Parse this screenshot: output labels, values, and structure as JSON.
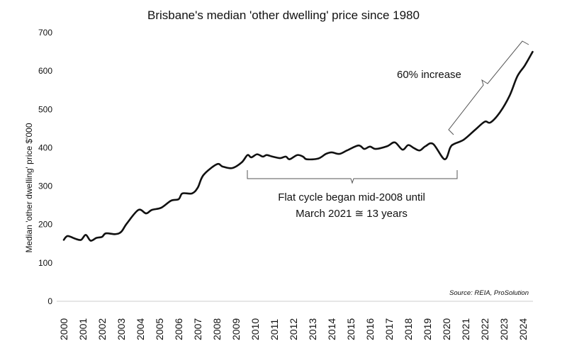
{
  "chart_data": {
    "type": "line",
    "title": "Brisbane's median 'other dwelling' price since 1980",
    "xlabel": "",
    "ylabel": "Median 'other dwelling' price $'000",
    "ylim": [
      0,
      700
    ],
    "yticks": [
      0,
      100,
      200,
      300,
      400,
      500,
      600,
      700
    ],
    "xlim": [
      2000,
      2024.6
    ],
    "xticks": [
      "2000",
      "2001",
      "2002",
      "2003",
      "2004",
      "2005",
      "2006",
      "2007",
      "2008",
      "2009",
      "2010",
      "2011",
      "2012",
      "2013",
      "2014",
      "2015",
      "2016",
      "2017",
      "2018",
      "2019",
      "2020",
      "2021",
      "2022",
      "2023",
      "2024"
    ],
    "grid": false,
    "line_color": "#111111",
    "x": [
      2000.0,
      2000.2,
      2000.6,
      2000.9,
      2001.15,
      2001.4,
      2001.7,
      2002.0,
      2002.2,
      2002.7,
      2003.0,
      2003.3,
      2003.9,
      2004.3,
      2004.6,
      2005.1,
      2005.6,
      2006.0,
      2006.2,
      2006.7,
      2007.0,
      2007.3,
      2008.0,
      2008.3,
      2008.8,
      2009.3,
      2009.6,
      2009.8,
      2010.1,
      2010.4,
      2010.6,
      2010.9,
      2011.3,
      2011.6,
      2011.8,
      2012.2,
      2012.5,
      2012.7,
      2013.3,
      2013.7,
      2014.0,
      2014.4,
      2014.8,
      2015.4,
      2015.7,
      2016.0,
      2016.3,
      2016.9,
      2017.3,
      2017.7,
      2018.0,
      2018.3,
      2018.6,
      2018.9,
      2019.3,
      2019.9,
      2020.2,
      2020.4,
      2020.9,
      2021.5,
      2022.0,
      2022.3,
      2022.8,
      2023.3,
      2023.7,
      2024.1,
      2024.5
    ],
    "y": [
      160,
      170,
      163,
      160,
      173,
      158,
      165,
      168,
      177,
      175,
      181,
      203,
      238,
      229,
      238,
      244,
      262,
      266,
      281,
      281,
      296,
      329,
      357,
      351,
      347,
      362,
      381,
      375,
      383,
      377,
      381,
      377,
      373,
      377,
      370,
      381,
      377,
      370,
      372,
      384,
      388,
      384,
      393,
      406,
      397,
      403,
      397,
      404,
      414,
      395,
      407,
      399,
      393,
      404,
      410,
      370,
      401,
      410,
      421,
      447,
      468,
      466,
      493,
      536,
      586,
      615,
      650
    ],
    "annotations": {
      "increase": "60% increase",
      "flat_line1": "Flat cycle began mid-2008 until",
      "flat_line2": "March 2021 ≅ 13 years",
      "source": "Source: REIA, ProSolution"
    }
  }
}
